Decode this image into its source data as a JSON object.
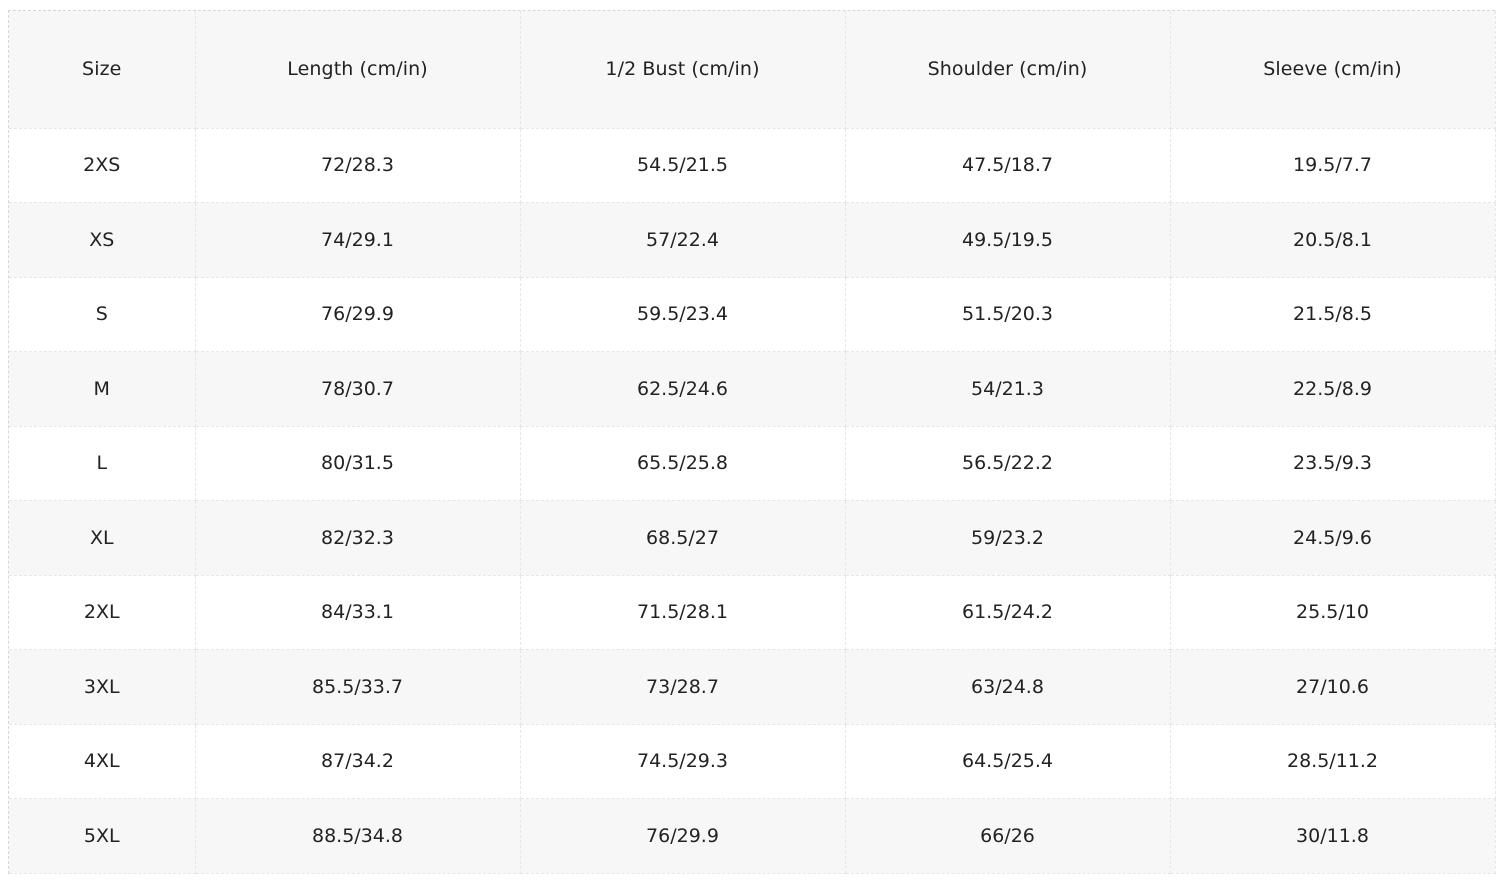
{
  "size_chart": {
    "headers": [
      "Size",
      "Length (cm/in)",
      "1/2 Bust (cm/in)",
      "Shoulder (cm/in)",
      "Sleeve (cm/in)"
    ],
    "rows": [
      [
        "2XS",
        "72/28.3",
        "54.5/21.5",
        "47.5/18.7",
        "19.5/7.7"
      ],
      [
        "XS",
        "74/29.1",
        "57/22.4",
        "49.5/19.5",
        "20.5/8.1"
      ],
      [
        "S",
        "76/29.9",
        "59.5/23.4",
        "51.5/20.3",
        "21.5/8.5"
      ],
      [
        "M",
        "78/30.7",
        "62.5/24.6",
        "54/21.3",
        "22.5/8.9"
      ],
      [
        "L",
        "80/31.5",
        "65.5/25.8",
        "56.5/22.2",
        "23.5/9.3"
      ],
      [
        "XL",
        "82/32.3",
        "68.5/27",
        "59/23.2",
        "24.5/9.6"
      ],
      [
        "2XL",
        "84/33.1",
        "71.5/28.1",
        "61.5/24.2",
        "25.5/10"
      ],
      [
        "3XL",
        "85.5/33.7",
        "73/28.7",
        "63/24.8",
        "27/10.6"
      ],
      [
        "4XL",
        "87/34.2",
        "74.5/29.3",
        "64.5/25.4",
        "28.5/11.2"
      ],
      [
        "5XL",
        "88.5/34.8",
        "76/29.9",
        "66/26",
        "30/11.8"
      ]
    ]
  }
}
